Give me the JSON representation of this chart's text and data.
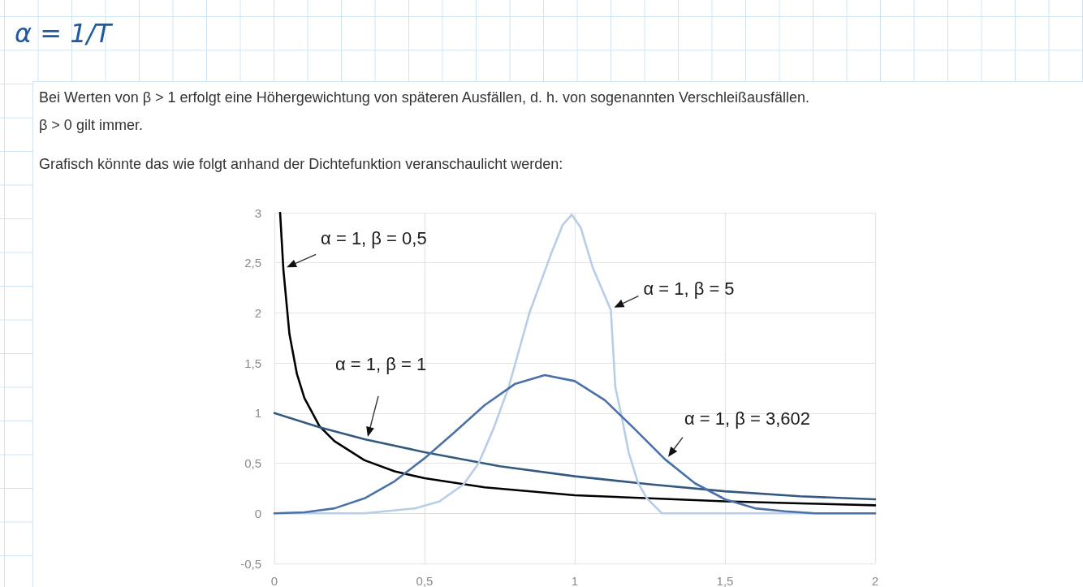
{
  "chart_data": {
    "type": "line",
    "annotations": [
      "α = 1/T",
      "Bei Werten von β > 1 erfolgt eine Höhergewichtung von späteren Ausfällen, d. h. von sogenannten Verschleißausfällen.",
      "β > 0 gilt immer.",
      "Grafisch könnte das wie folgt anhand der Dichtefunktion veranschaulicht werden:"
    ],
    "series": [
      {
        "name": "α = 1, β = 0,5",
        "color": "#000000",
        "x": [
          0.019,
          0.03,
          0.05,
          0.075,
          0.1,
          0.15,
          0.2,
          0.3,
          0.4,
          0.5,
          0.7,
          1,
          1.25,
          1.5,
          1.75,
          2
        ],
        "values": [
          3,
          2.43,
          1.79,
          1.39,
          1.15,
          0.87,
          0.72,
          0.53,
          0.42,
          0.35,
          0.26,
          0.18,
          0.15,
          0.12,
          0.1,
          0.08
        ]
      },
      {
        "name": "α = 1, β = 1",
        "color": "#34597f",
        "x": [
          0,
          0.15,
          0.3,
          0.5,
          0.75,
          1,
          1.25,
          1.5,
          1.75,
          2
        ],
        "values": [
          1,
          0.86,
          0.74,
          0.61,
          0.47,
          0.37,
          0.29,
          0.22,
          0.17,
          0.14
        ]
      },
      {
        "name": "α = 1, β = 5",
        "color": "#b7cde8",
        "x": [
          0,
          0.3,
          0.47,
          0.55,
          0.63,
          0.68,
          0.73,
          0.78,
          0.85,
          0.92,
          0.96,
          0.99,
          1.02,
          1.06,
          1.12,
          1.135,
          1.155,
          1.18,
          1.21,
          1.24,
          1.29,
          1.4,
          2
        ],
        "values": [
          0,
          0,
          0.05,
          0.12,
          0.29,
          0.5,
          0.85,
          1.26,
          2.01,
          2.58,
          2.88,
          2.98,
          2.85,
          2.45,
          2.03,
          1.26,
          0.98,
          0.6,
          0.31,
          0.15,
          0,
          0,
          0
        ]
      },
      {
        "name": "α = 1, β = 3,602",
        "color": "#4a72a6",
        "x": [
          0,
          0.1,
          0.2,
          0.3,
          0.4,
          0.5,
          0.6,
          0.7,
          0.8,
          0.9,
          1,
          1.1,
          1.2,
          1.3,
          1.4,
          1.5,
          1.6,
          1.7,
          1.8,
          2
        ],
        "values": [
          0,
          0.01,
          0.05,
          0.15,
          0.32,
          0.55,
          0.81,
          1.08,
          1.29,
          1.38,
          1.32,
          1.13,
          0.84,
          0.54,
          0.3,
          0.14,
          0.05,
          0.02,
          0,
          0
        ]
      }
    ],
    "xlim": [
      0,
      2
    ],
    "xticks": [
      0,
      {
        "value": 0.5,
        "label": "0,5"
      },
      1,
      {
        "value": 1.5,
        "label": "1,5"
      },
      2
    ],
    "ylim": [
      -0.5,
      3
    ],
    "yticks": [
      {
        "value": -0.5,
        "label": "-0,5"
      },
      0,
      {
        "value": 0.5,
        "label": "0,5"
      },
      1,
      {
        "value": 1.5,
        "label": "1,5"
      },
      2,
      {
        "value": 2.5,
        "label": "2,5"
      },
      3
    ],
    "grid": true,
    "marker": "none",
    "line_style": "solid"
  }
}
